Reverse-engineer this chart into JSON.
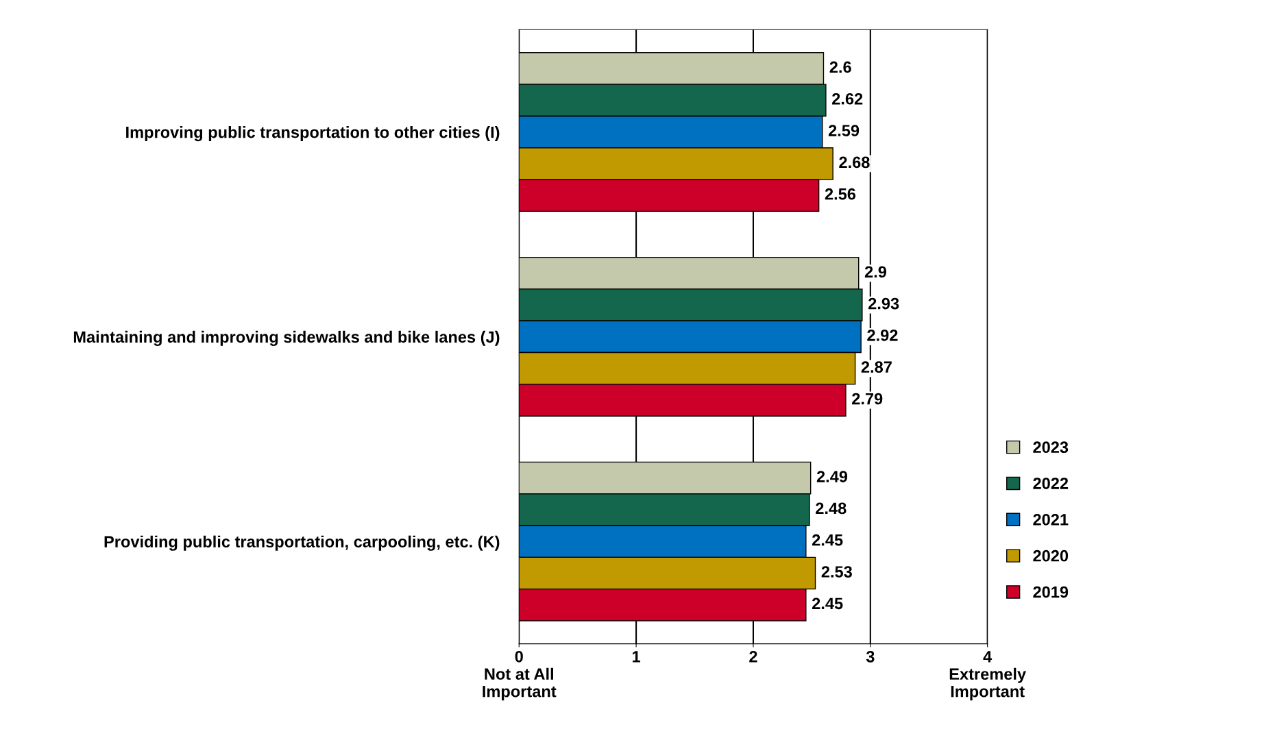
{
  "chart_data": {
    "type": "bar",
    "orientation": "horizontal",
    "categories": [
      "Improving public transportation to other cities (I)",
      "Maintaining and improving sidewalks and bike lanes (J)",
      "Providing public transportation, carpooling, etc. (K)"
    ],
    "series": [
      {
        "name": "2023",
        "color": "#c4c9ac",
        "values": [
          2.6,
          2.9,
          2.49
        ]
      },
      {
        "name": "2022",
        "color": "#14664c",
        "values": [
          2.62,
          2.93,
          2.48
        ]
      },
      {
        "name": "2021",
        "color": "#0070c0",
        "values": [
          2.59,
          2.92,
          2.45
        ]
      },
      {
        "name": "2020",
        "color": "#c09a00",
        "values": [
          2.68,
          2.87,
          2.53
        ]
      },
      {
        "name": "2019",
        "color": "#cc0029",
        "values": [
          2.56,
          2.79,
          2.45
        ]
      }
    ],
    "xlim": [
      0,
      4
    ],
    "xticks": [
      {
        "value": 0,
        "label": "0\nNot at All\nImportant"
      },
      1,
      2,
      3,
      {
        "value": 4,
        "label": "4\nExtremely\nImportant"
      }
    ],
    "grid": "x",
    "legend": "right",
    "data_labels": true
  }
}
